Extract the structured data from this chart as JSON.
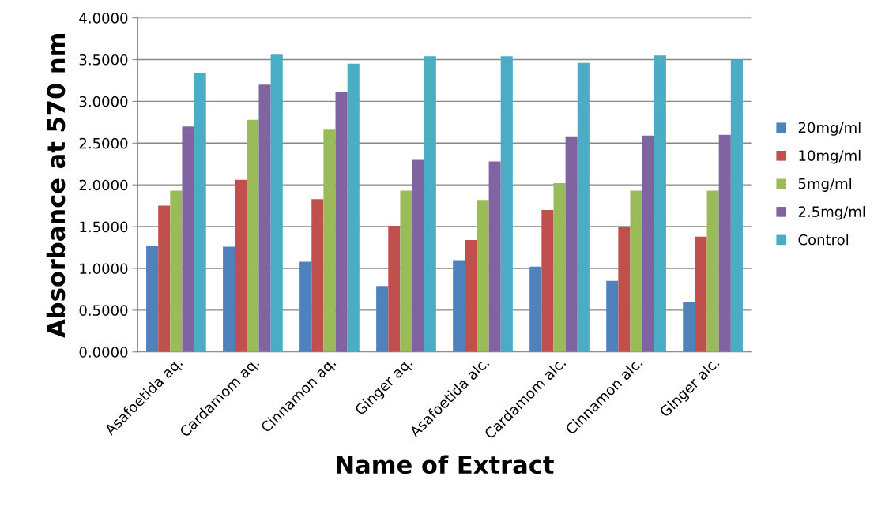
{
  "chart_data": {
    "type": "bar",
    "xlabel": "Name of Extract",
    "ylabel": "Absorbance at 570 nm",
    "categories": [
      "Asafoetida aq.",
      "Cardamom aq.",
      "Cinnamon aq.",
      "Ginger aq.",
      "Asafoetida alc.",
      "Cardamom alc.",
      "Cinnamon alc.",
      "Ginger alc."
    ],
    "series": [
      {
        "name": "20mg/ml",
        "color": "#4f81bd",
        "values": [
          1.27,
          1.26,
          1.08,
          0.79,
          1.1,
          1.02,
          0.85,
          0.6
        ]
      },
      {
        "name": "10mg/ml",
        "color": "#c0504d",
        "values": [
          1.75,
          2.06,
          1.83,
          1.51,
          1.34,
          1.7,
          1.5,
          1.38
        ]
      },
      {
        "name": "5mg/ml",
        "color": "#9bbb59",
        "values": [
          1.93,
          2.78,
          2.66,
          1.93,
          1.82,
          2.02,
          1.93,
          1.93
        ]
      },
      {
        "name": "2.5mg/ml",
        "color": "#8064a2",
        "values": [
          2.7,
          3.2,
          3.11,
          2.3,
          2.28,
          2.58,
          2.59,
          2.6
        ]
      },
      {
        "name": "Control",
        "color": "#4bacc6",
        "values": [
          3.34,
          3.56,
          3.45,
          3.54,
          3.54,
          3.46,
          3.55,
          3.5
        ]
      }
    ],
    "ylim": [
      0,
      4
    ],
    "yticks": [
      {
        "value": 0,
        "label": "0.0000"
      },
      {
        "value": 0.5,
        "label": "0.5000"
      },
      {
        "value": 1,
        "label": "1.0000"
      },
      {
        "value": 1.5,
        "label": "1.5000"
      },
      {
        "value": 2,
        "label": "2.0000"
      },
      {
        "value": 2.5,
        "label": "2.5000"
      },
      {
        "value": 3,
        "label": "3.0000"
      },
      {
        "value": 3.5,
        "label": "3.5000"
      },
      {
        "value": 4,
        "label": "4.0000"
      }
    ],
    "grid": "y",
    "legend": "right"
  }
}
